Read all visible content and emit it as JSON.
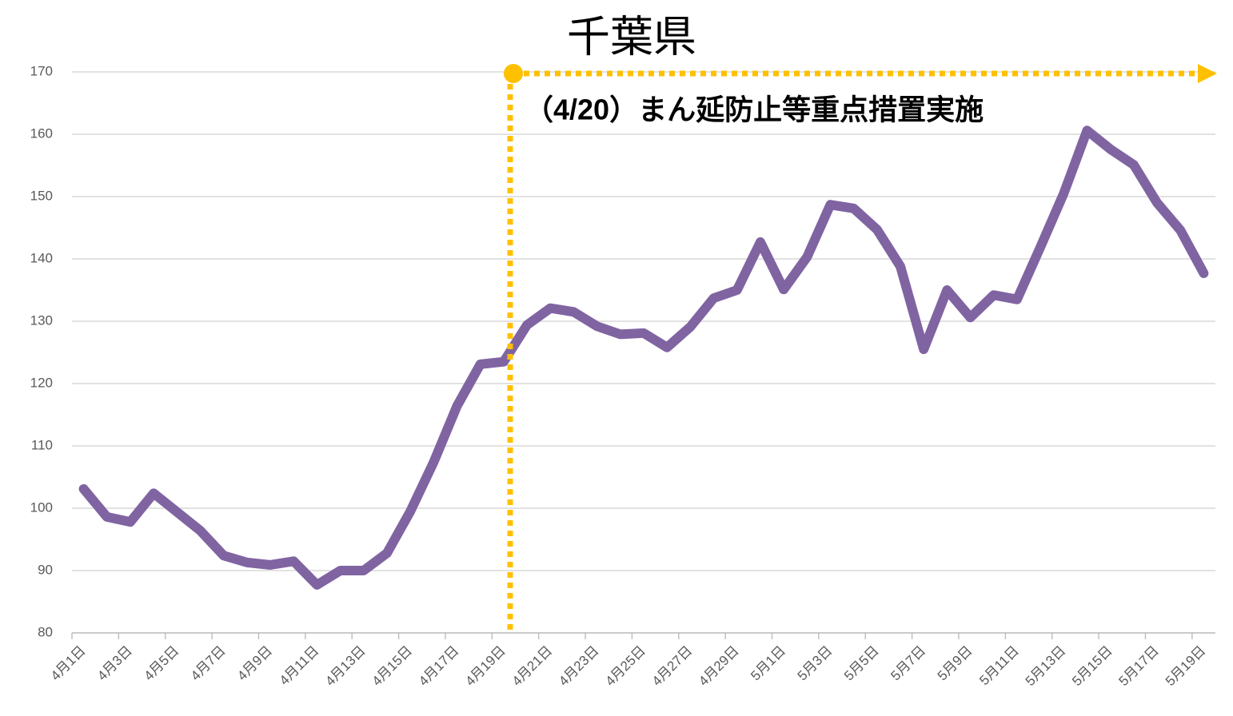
{
  "chart_data": {
    "type": "line",
    "title": "千葉県",
    "annotation": "（4/20）まん延防止等重点措置実施",
    "categories": [
      "4月1日",
      null,
      "4月3日",
      null,
      "4月5日",
      null,
      "4月7日",
      null,
      "4月9日",
      null,
      "4月11日",
      null,
      "4月13日",
      null,
      "4月15日",
      null,
      "4月17日",
      null,
      "4月19日",
      null,
      "4月21日",
      null,
      "4月23日",
      null,
      "4月25日",
      null,
      "4月27日",
      null,
      "4月29日",
      null,
      "5月1日",
      null,
      "5月3日",
      null,
      "5月5日",
      null,
      "5月7日",
      null,
      "5月9日",
      null,
      "5月11日",
      null,
      "5月13日",
      null,
      "5月15日",
      null,
      "5月17日",
      null,
      "5月19日"
    ],
    "series": [
      {
        "color": "#8064a2",
        "values": [
          103.1,
          98.6,
          97.8,
          102.4,
          99.4,
          96.4,
          92.4,
          91.3,
          90.9,
          91.5,
          87.7,
          90.0,
          90.0,
          92.8,
          99.5,
          107.4,
          116.4,
          123.1,
          123.5,
          129.4,
          132.1,
          131.5,
          129.2,
          127.9,
          128.1,
          125.8,
          129.1,
          133.7,
          135.0,
          142.7,
          135.1,
          140.3,
          148.7,
          148.1,
          144.7,
          138.8,
          125.5,
          135.0,
          130.6,
          134.2,
          133.5,
          141.9,
          150.5,
          160.6,
          157.6,
          155.1,
          149.0,
          144.6,
          137.7
        ]
      }
    ],
    "ylim": [
      80,
      170
    ],
    "yticks": [
      80,
      90,
      100,
      110,
      120,
      130,
      140,
      150,
      160,
      170
    ],
    "grid": true
  }
}
